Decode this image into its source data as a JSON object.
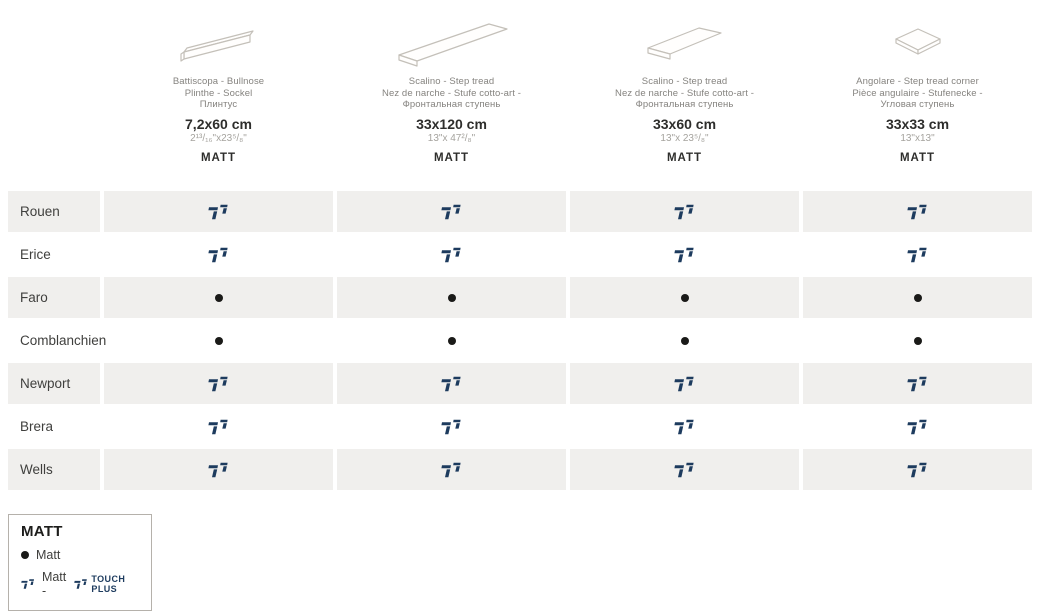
{
  "products": [
    {
      "icon": "skirting-tile-icon",
      "name_lines": [
        "Battiscopa - Bullnose",
        "Plinthe - Sockel",
        "Плинтус"
      ],
      "size_cm": "7,2x60 cm",
      "size_inches": "2¹³/₁₆\"x23⁵/₈\"",
      "finish": "MATT"
    },
    {
      "icon": "step-tread-long-icon",
      "name_lines": [
        "Scalino - Step tread",
        "Nez de narche - Stufe cotto-art -",
        "Фронтальная ступень"
      ],
      "size_cm": "33x120 cm",
      "size_inches": "13\"x 47²/₈\"",
      "finish": "MATT"
    },
    {
      "icon": "step-tread-icon",
      "name_lines": [
        "Scalino - Step tread",
        "Nez de narche - Stufe cotto-art -",
        "Фронтальная ступень"
      ],
      "size_cm": "33x60 cm",
      "size_inches": "13\"x 23⁵/₈\"",
      "finish": "MATT"
    },
    {
      "icon": "corner-step-tile-icon",
      "name_lines": [
        "Angolare - Step tread corner",
        "Pièce angulaire - Stufenecke -",
        "Угловая ступень"
      ],
      "size_cm": "33x33 cm",
      "size_inches": "13\"x13\"",
      "finish": "MATT"
    }
  ],
  "series_rows": [
    {
      "label": "Rouen",
      "marker": "touchplus"
    },
    {
      "label": "Erice",
      "marker": "touchplus"
    },
    {
      "label": "Faro",
      "marker": "dot"
    },
    {
      "label": "Comblanchien",
      "marker": "dot"
    },
    {
      "label": "Newport",
      "marker": "touchplus"
    },
    {
      "label": "Brera",
      "marker": "touchplus"
    },
    {
      "label": "Wells",
      "marker": "touchplus"
    }
  ],
  "legend": {
    "title": "MATT",
    "dot_item_label": "Matt",
    "touch_item_label": "Matt -",
    "touch_brand_label": "TOUCH PLUS"
  },
  "colors": {
    "accent_navy": "#1d3b5e",
    "row_gray": "#f0efed",
    "dot_black": "#1a1a18"
  }
}
